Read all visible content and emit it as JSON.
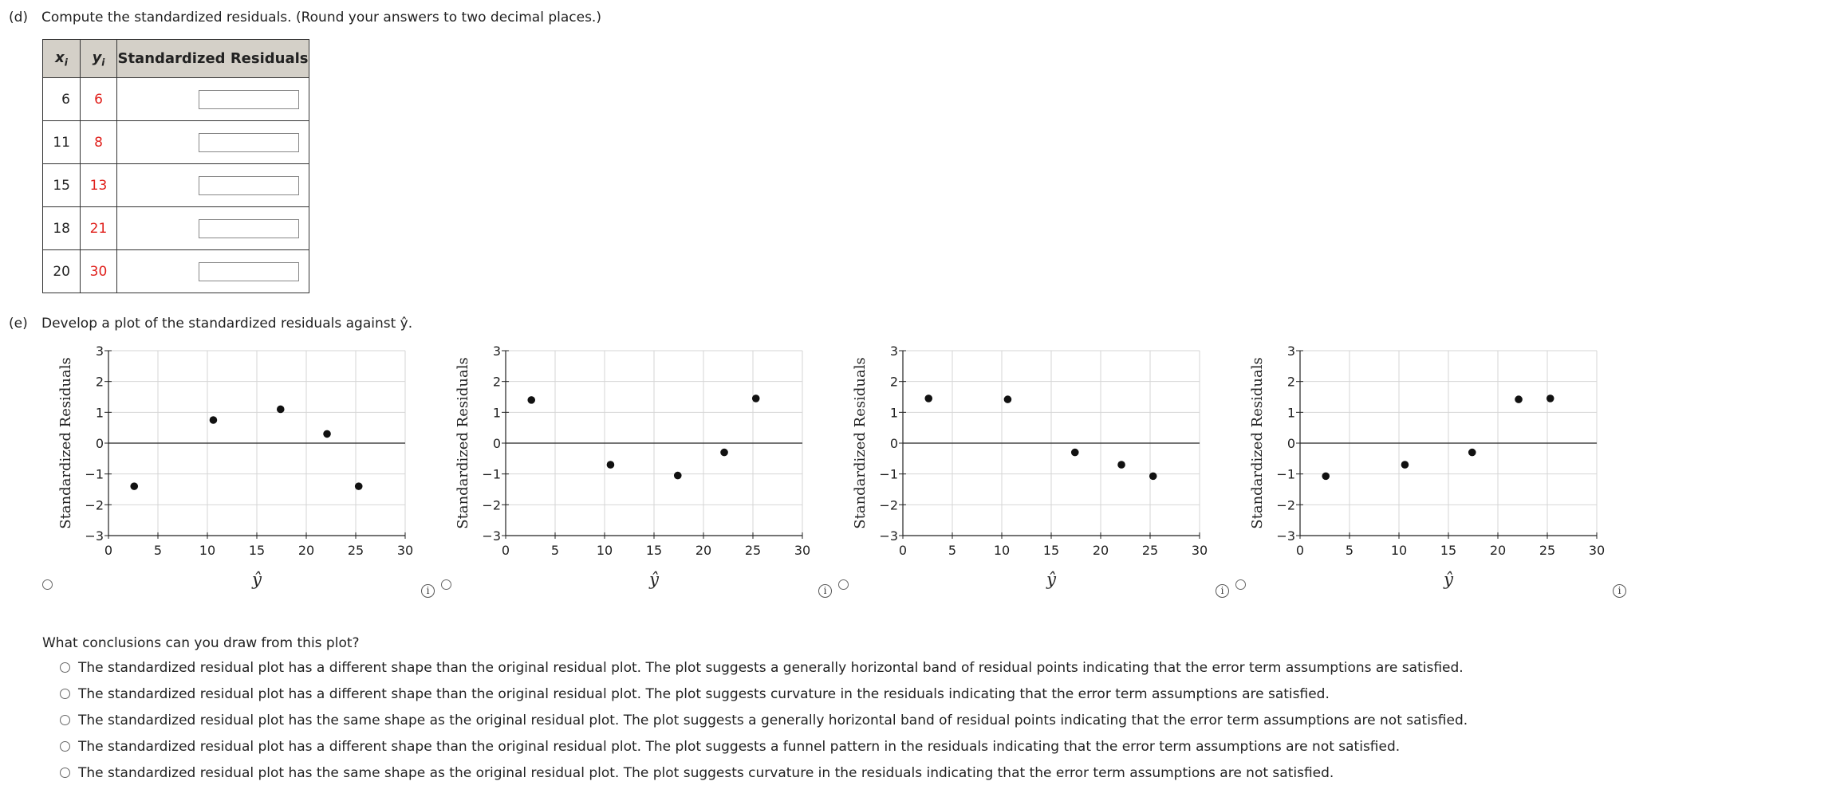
{
  "part_d": {
    "label": "(d)",
    "instruction": "Compute the standardized residuals. (Round your answers to two decimal places.)",
    "headers": {
      "x": "x",
      "x_sub": "i",
      "y": "y",
      "y_sub": "i",
      "resid": "Standardized Residuals"
    },
    "rows": [
      {
        "x": "6",
        "y": "6"
      },
      {
        "x": "11",
        "y": "8"
      },
      {
        "x": "15",
        "y": "13"
      },
      {
        "x": "18",
        "y": "21"
      },
      {
        "x": "20",
        "y": "30"
      }
    ]
  },
  "part_e": {
    "label": "(e)",
    "instruction": "Develop a plot of the standardized residuals against ŷ."
  },
  "chart_data": [
    {
      "type": "scatter",
      "ylabel": "Standardized Residuals",
      "xlabel": "ŷ",
      "xlim": [
        0,
        30
      ],
      "ylim": [
        -3,
        3
      ],
      "xticks": [
        "0",
        "5",
        "10",
        "15",
        "20",
        "25",
        "30"
      ],
      "yticks": [
        "3",
        "2",
        "1",
        "0",
        "−1",
        "−2",
        "−3"
      ],
      "grid": true,
      "points": [
        [
          2.6,
          -1.4
        ],
        [
          10.6,
          0.75
        ],
        [
          17.4,
          1.1
        ],
        [
          22.1,
          0.3
        ],
        [
          25.3,
          -1.4
        ]
      ]
    },
    {
      "type": "scatter",
      "ylabel": "Standardized Residuals",
      "xlabel": "ŷ",
      "xlim": [
        0,
        30
      ],
      "ylim": [
        -3,
        3
      ],
      "xticks": [
        "0",
        "5",
        "10",
        "15",
        "20",
        "25",
        "30"
      ],
      "yticks": [
        "3",
        "2",
        "1",
        "0",
        "−1",
        "−2",
        "−3"
      ],
      "grid": true,
      "points": [
        [
          2.6,
          1.4
        ],
        [
          10.6,
          -0.7
        ],
        [
          17.4,
          -1.05
        ],
        [
          22.1,
          -0.3
        ],
        [
          25.3,
          1.45
        ]
      ]
    },
    {
      "type": "scatter",
      "ylabel": "Standardized Residuals",
      "xlabel": "ŷ",
      "xlim": [
        0,
        30
      ],
      "ylim": [
        -3,
        3
      ],
      "xticks": [
        "0",
        "5",
        "10",
        "15",
        "20",
        "25",
        "30"
      ],
      "yticks": [
        "3",
        "2",
        "1",
        "0",
        "−1",
        "−2",
        "−3"
      ],
      "grid": true,
      "points": [
        [
          2.6,
          1.45
        ],
        [
          10.6,
          1.42
        ],
        [
          17.4,
          -0.3
        ],
        [
          22.1,
          -0.7
        ],
        [
          25.3,
          -1.07
        ]
      ]
    },
    {
      "type": "scatter",
      "ylabel": "Standardized Residuals",
      "xlabel": "ŷ",
      "xlim": [
        0,
        30
      ],
      "ylim": [
        -3,
        3
      ],
      "xticks": [
        "0",
        "5",
        "10",
        "15",
        "20",
        "25",
        "30"
      ],
      "yticks": [
        "3",
        "2",
        "1",
        "0",
        "−1",
        "−2",
        "−3"
      ],
      "grid": true,
      "points": [
        [
          2.6,
          -1.07
        ],
        [
          10.6,
          -0.7
        ],
        [
          17.4,
          -0.3
        ],
        [
          22.1,
          1.42
        ],
        [
          25.3,
          1.45
        ]
      ]
    }
  ],
  "conclusion": {
    "question": "What conclusions can you draw from this plot?",
    "options": [
      "The standardized residual plot has a different shape than the original residual plot. The plot suggests a generally horizontal band of residual points indicating that the error term assumptions are satisfied.",
      "The standardized residual plot has a different shape than the original residual plot. The plot suggests curvature in the residuals indicating that the error term assumptions are satisfied.",
      "The standardized residual plot has the same shape as the original residual plot. The plot suggests a generally horizontal band of residual points indicating that the error term assumptions are not satisfied.",
      "The standardized residual plot has a different shape than the original residual plot. The plot suggests a funnel pattern in the residuals indicating that the error term assumptions are not satisfied.",
      "The standardized residual plot has the same shape as the original residual plot. The plot suggests curvature in the residuals indicating that the error term assumptions are not satisfied."
    ]
  },
  "icons": {
    "info": "info-icon",
    "radio": "radio-button"
  },
  "info_glyph": "i",
  "colors": {
    "given_value": "#e0201c",
    "header_bg": "#d4d0c8"
  }
}
